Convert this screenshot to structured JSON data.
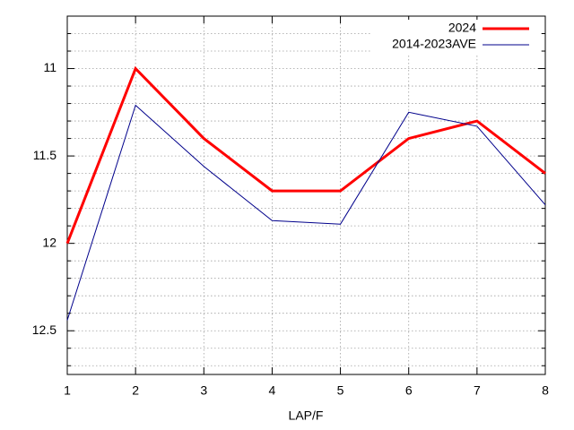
{
  "chart_data": {
    "type": "line",
    "xlabel": "LAP/F",
    "x": [
      1,
      2,
      3,
      4,
      5,
      6,
      7,
      8
    ],
    "xlim": [
      1,
      8
    ],
    "xticks": [
      1,
      2,
      3,
      4,
      5,
      6,
      7,
      8
    ],
    "ylim": [
      10.7,
      12.75
    ],
    "y_inverted": true,
    "yticks": [
      11,
      11.5,
      12,
      12.5
    ],
    "yminor_ticks": [
      10.7,
      10.8,
      10.9,
      11.1,
      11.2,
      11.3,
      11.4,
      11.6,
      11.7,
      11.8,
      11.9,
      12.1,
      12.2,
      12.3,
      12.4,
      12.6,
      12.7
    ],
    "grid": true,
    "legend": "top-right",
    "series": [
      {
        "name": "2024",
        "color": "#ff0000",
        "values": [
          12.0,
          11.0,
          11.4,
          11.7,
          11.7,
          11.4,
          11.3,
          11.6
        ]
      },
      {
        "name": "2014-2023AVE",
        "color": "#00008b",
        "values": [
          12.44,
          11.21,
          11.56,
          11.87,
          11.89,
          11.25,
          11.33,
          11.78
        ]
      }
    ]
  }
}
